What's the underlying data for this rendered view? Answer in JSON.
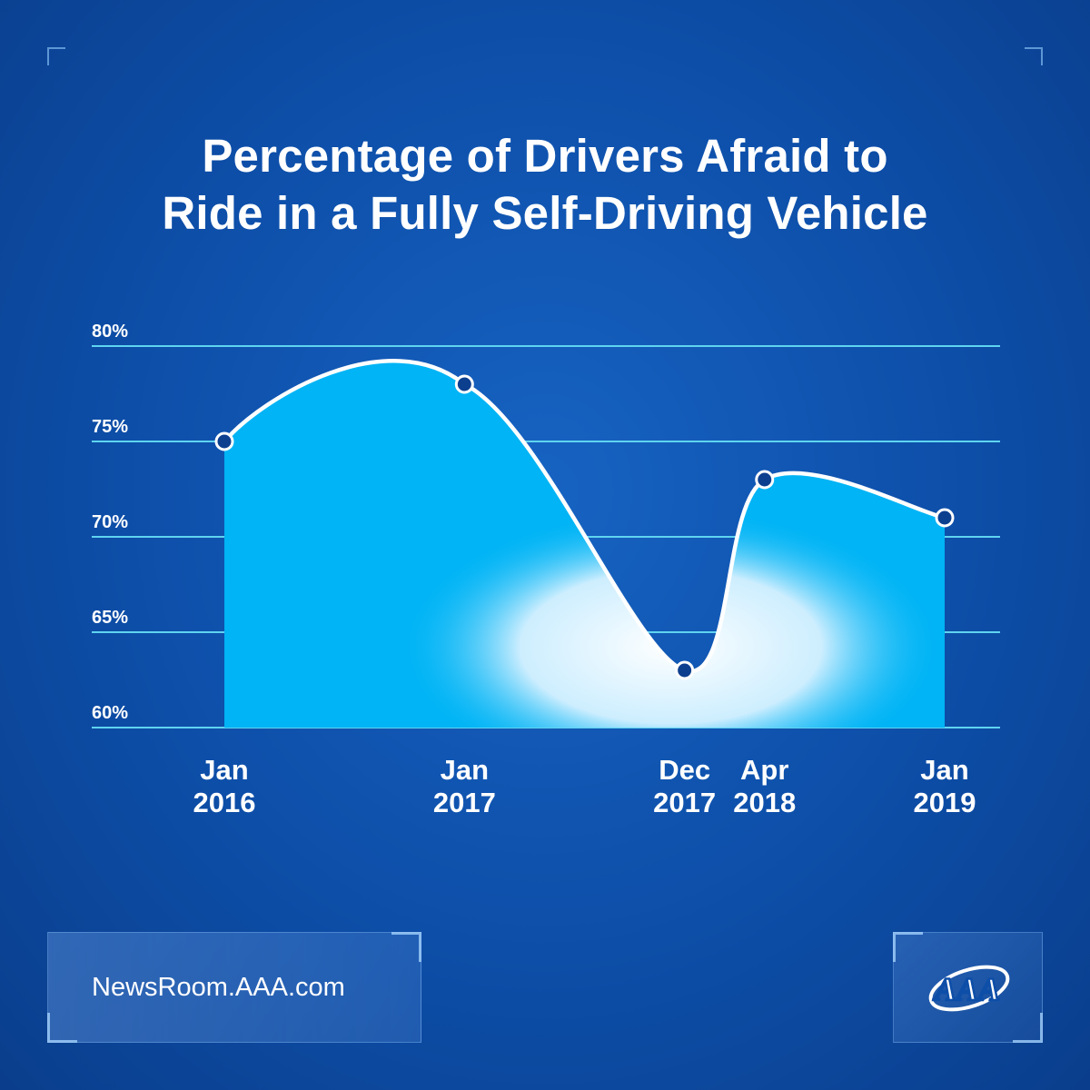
{
  "chart_data": {
    "type": "area",
    "title": [
      "Percentage of Drivers Afraid to",
      "Ride in a Fully Self-Driving Vehicle"
    ],
    "categories": [
      "Jan 2016",
      "Jan 2017",
      "Dec 2017",
      "Apr 2018",
      "Jan 2019"
    ],
    "category_lines": [
      [
        "Jan",
        "2016"
      ],
      [
        "Jan",
        "2017"
      ],
      [
        "Dec",
        "2017"
      ],
      [
        "Apr",
        "2018"
      ],
      [
        "Jan",
        "2019"
      ]
    ],
    "x_months": [
      0,
      12,
      23,
      27,
      36
    ],
    "values": [
      75,
      78,
      63,
      73,
      71
    ],
    "ylim": [
      60,
      80
    ],
    "yticks": [
      60,
      65,
      70,
      75,
      80
    ],
    "ytick_labels": [
      "60%",
      "65%",
      "70%",
      "75%",
      "80%"
    ],
    "grid": true,
    "legend": "none"
  },
  "colors": {
    "background": "#0d4ea8",
    "gridline": "#5fd4f0",
    "area": "#00b4f5",
    "line": "#ffffff",
    "marker": "#0d3f8f"
  },
  "footer": {
    "url": "NewsRoom.AAA.com",
    "logo_icon": "aaa-logo-icon",
    "logo_text": "AAA"
  }
}
